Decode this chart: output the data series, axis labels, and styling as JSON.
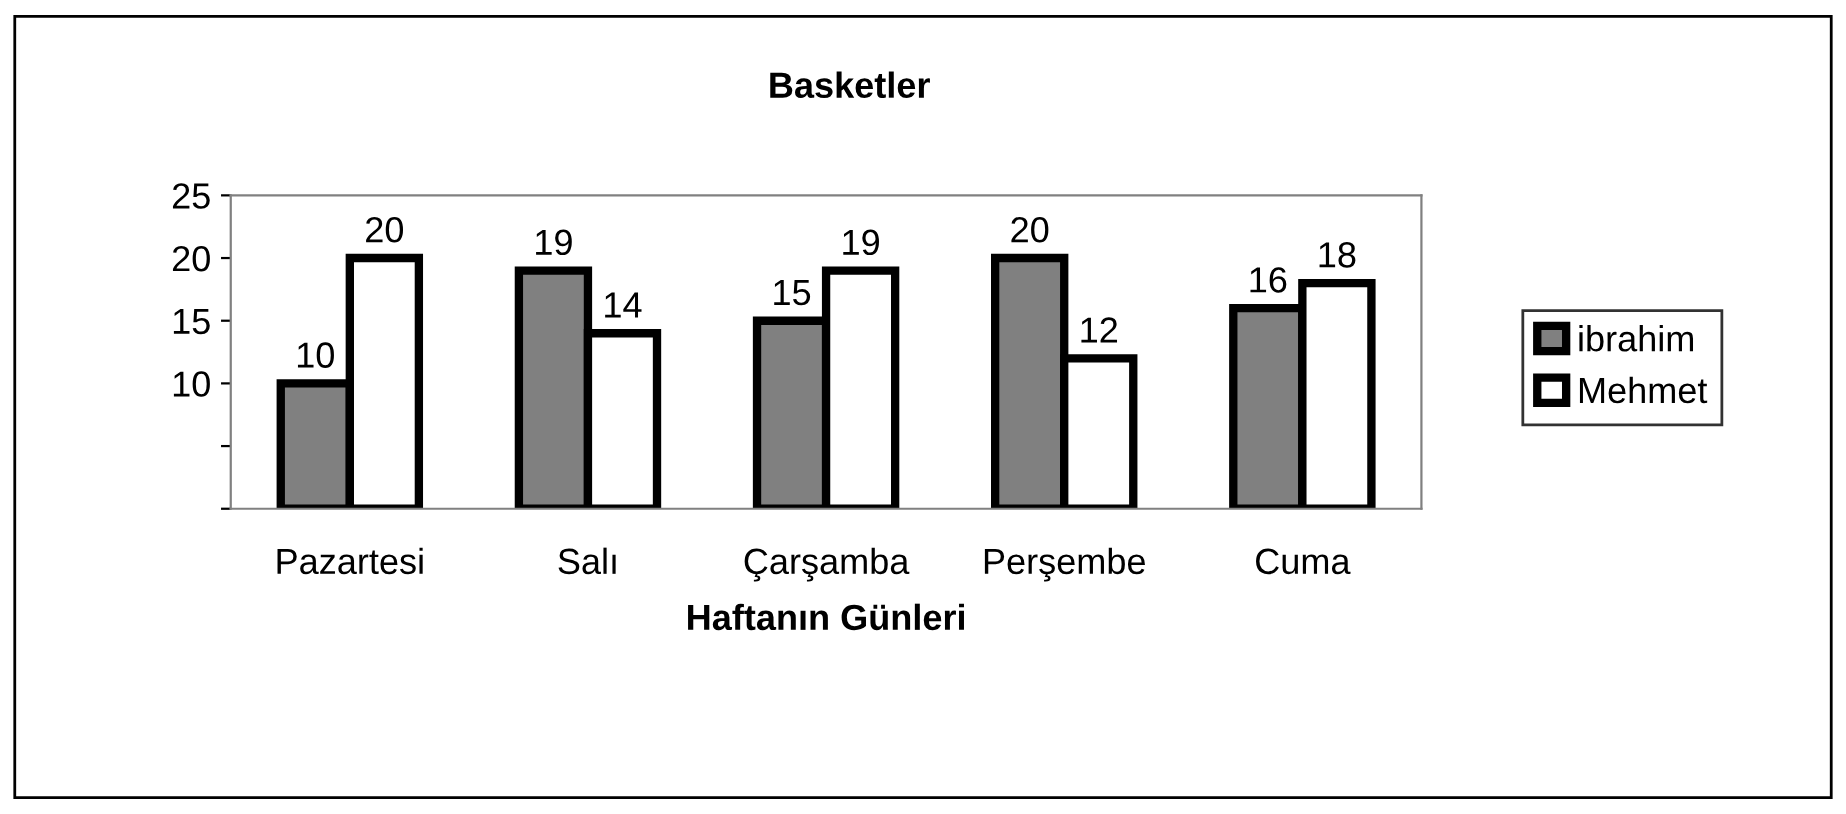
{
  "chart_data": {
    "type": "bar",
    "title": "Basketler",
    "xlabel": "Haftanın Günleri",
    "categories": [
      "Pazartesi",
      "Salı",
      "Çarşamba",
      "Perşembe",
      "Cuma"
    ],
    "series": [
      {
        "name": "ibrahim",
        "color": "#808080",
        "values": [
          10,
          19,
          15,
          20,
          16
        ]
      },
      {
        "name": "Mehmet",
        "color": "#ffffff",
        "values": [
          20,
          14,
          19,
          12,
          18
        ]
      }
    ],
    "ylim": [
      0,
      25
    ],
    "yticks": [
      {
        "value": 0,
        "label": null
      },
      {
        "value": 5,
        "label": null
      },
      10,
      15,
      20,
      25
    ],
    "data_labels": true,
    "grid": false,
    "legend": "right"
  }
}
